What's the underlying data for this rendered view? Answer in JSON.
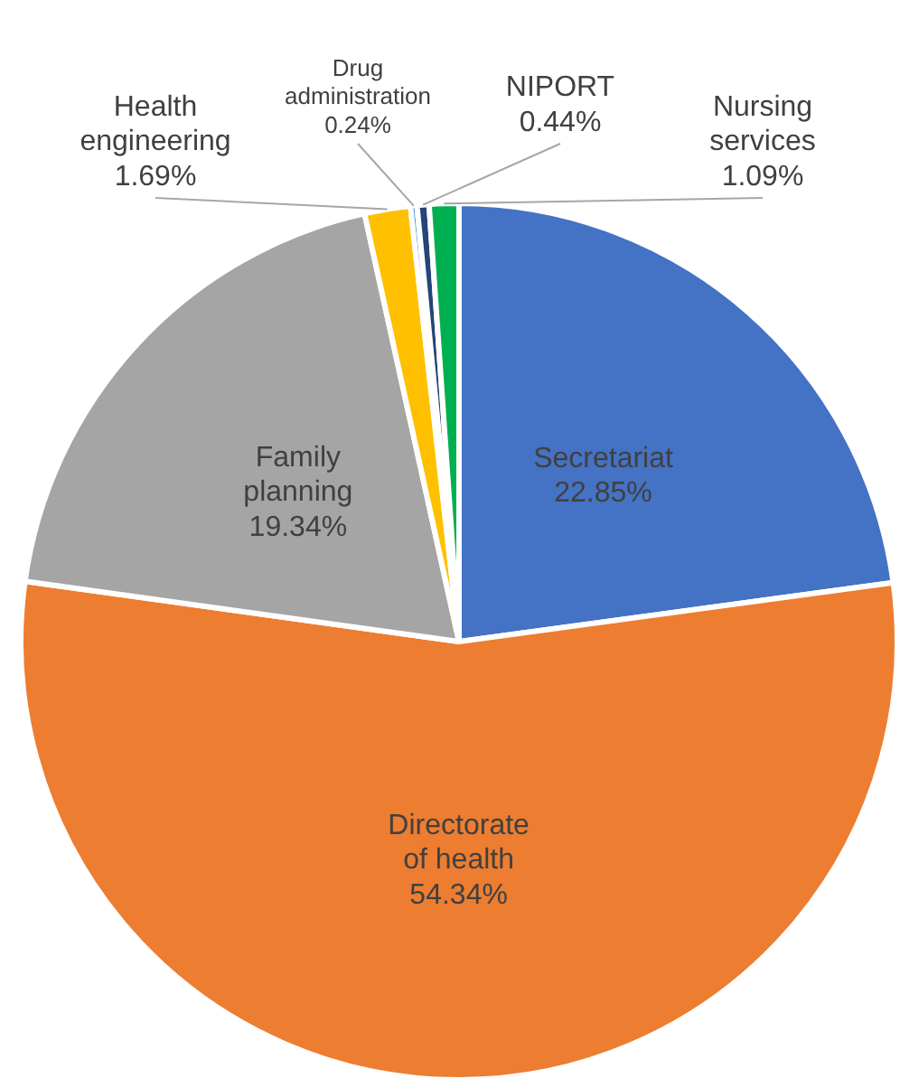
{
  "chart_data": {
    "type": "pie",
    "categories": [
      "Secretariat",
      "Directorate of health",
      "Family planning",
      "Health engineering",
      "Drug administration",
      "NIPORT",
      "Nursing services"
    ],
    "values": [
      22.85,
      54.34,
      19.34,
      1.69,
      0.24,
      0.44,
      1.09
    ],
    "colors": [
      "#4472c4",
      "#ed7d31",
      "#a5a5a5",
      "#ffc000",
      "#5b9bd5",
      "#264478",
      "#00b050"
    ],
    "value_labels": [
      "22.85%",
      "54.34%",
      "19.34%",
      "1.69%",
      "0.24%",
      "0.44%",
      "1.09%"
    ],
    "legend": false
  }
}
